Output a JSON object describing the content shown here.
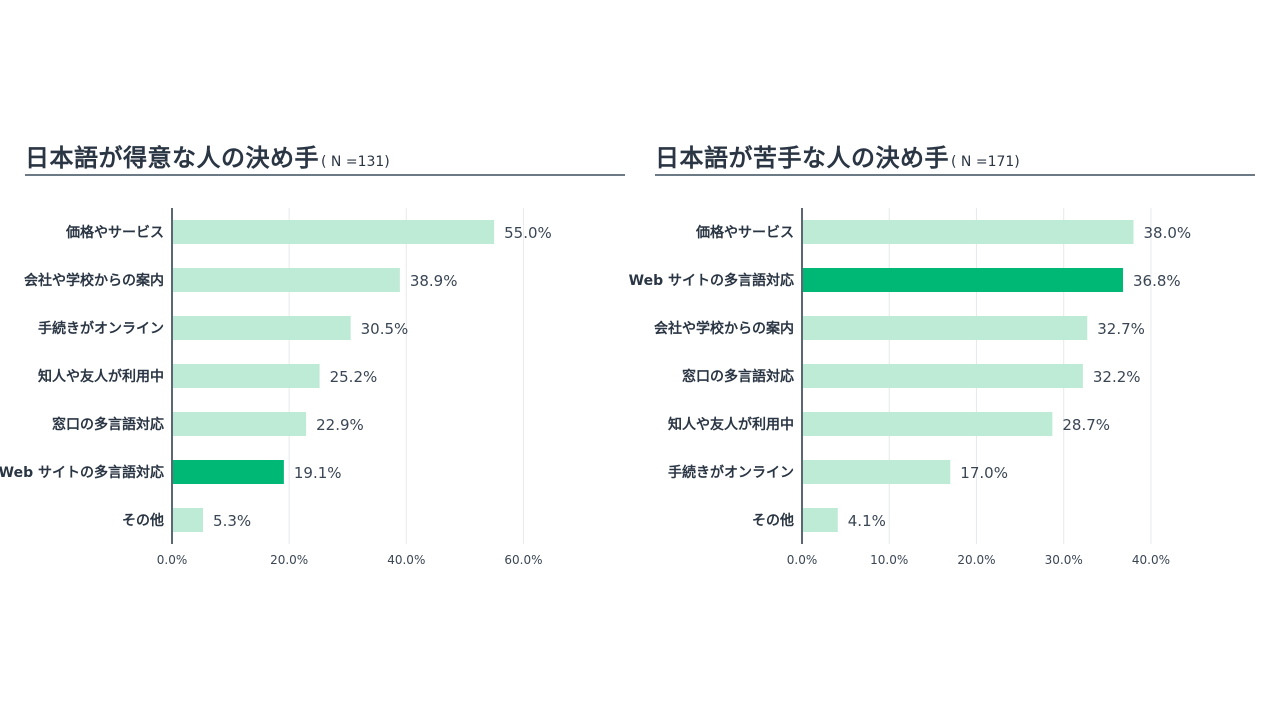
{
  "chart_data": [
    {
      "type": "bar",
      "orientation": "horizontal",
      "title": "日本語が得意な人の決め手",
      "n_label": "( N =131)",
      "categories": [
        "価格やサービス",
        "会社や学校からの案内",
        "手続きがオンライン",
        "知人や友人が利用中",
        "窓口の多言語対応",
        "Web サイトの多言語対応",
        "その他"
      ],
      "values": [
        55.0,
        38.9,
        30.5,
        25.2,
        22.9,
        19.1,
        5.3
      ],
      "value_labels": [
        "55.0%",
        "38.9%",
        "30.5%",
        "25.2%",
        "22.9%",
        "19.1%",
        "5.3%"
      ],
      "highlight": "Web サイトの多言語対応",
      "xlim": [
        0,
        70
      ],
      "xticks": [
        0,
        20,
        40,
        60
      ],
      "xtick_labels": [
        "0.0%",
        "20.0%",
        "40.0%",
        "60.0%"
      ],
      "grid": true
    },
    {
      "type": "bar",
      "orientation": "horizontal",
      "title": "日本語が苦手な人の決め手",
      "n_label": "( N =171)",
      "categories": [
        "価格やサービス",
        "Web サイトの多言語対応",
        "会社や学校からの案内",
        "窓口の多言語対応",
        "知人や友人が利用中",
        "手続きがオンライン",
        "その他"
      ],
      "values": [
        38.0,
        36.8,
        32.7,
        32.2,
        28.7,
        17.0,
        4.1
      ],
      "value_labels": [
        "38.0%",
        "36.8%",
        "32.7%",
        "32.2%",
        "28.7%",
        "17.0%",
        "4.1%"
      ],
      "highlight": "Web サイトの多言語対応",
      "xlim": [
        0,
        47
      ],
      "xticks": [
        0,
        10,
        20,
        30,
        40
      ],
      "xtick_labels": [
        "0.0%",
        "10.0%",
        "20.0%",
        "30.0%",
        "40.0%"
      ],
      "grid": true
    }
  ],
  "colors": {
    "bar": "#bdebd6",
    "highlight": "#00b875",
    "axis": "#5b6775",
    "grid": "#e6e9ec"
  }
}
